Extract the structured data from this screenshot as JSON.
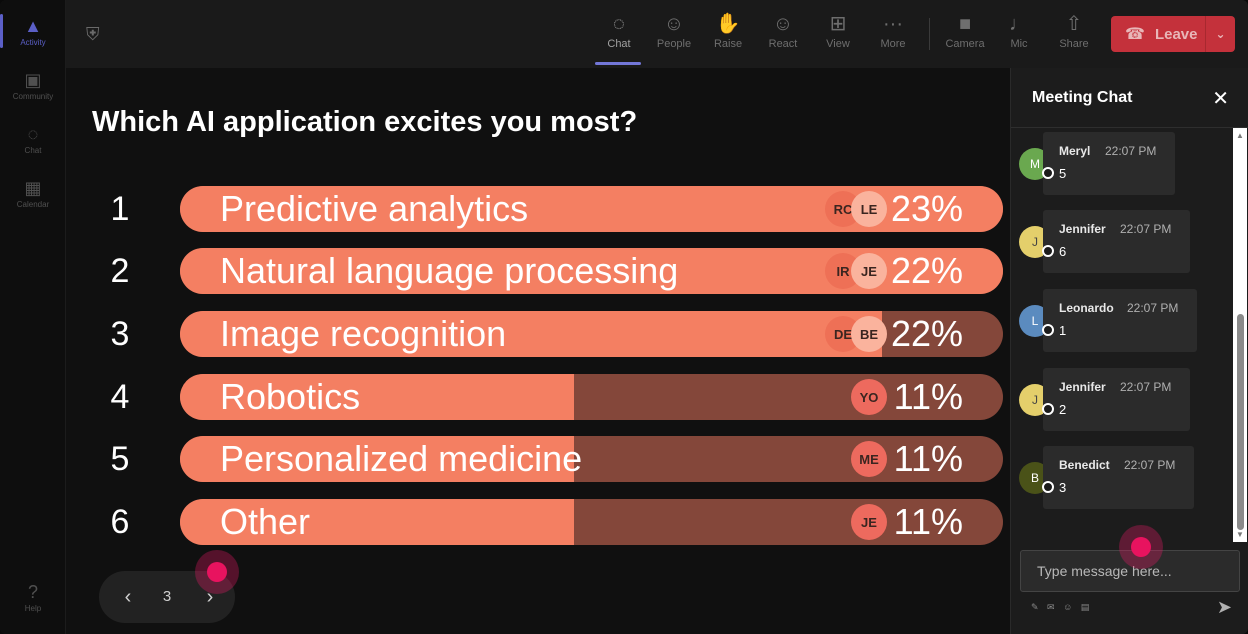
{
  "rail": {
    "items": [
      {
        "label": "Activity",
        "icon": "bell-icon",
        "glyph": "▲"
      },
      {
        "label": "Community",
        "icon": "community-icon",
        "glyph": "▣"
      },
      {
        "label": "Chat",
        "icon": "chat-icon",
        "glyph": "◌"
      },
      {
        "label": "Calendar",
        "icon": "calendar-icon",
        "glyph": "▦"
      },
      {
        "label": "Help",
        "icon": "help-icon",
        "glyph": "?"
      }
    ]
  },
  "toolbar": {
    "buttons": [
      {
        "label": "Chat",
        "icon": "chat-icon",
        "glyph": "◌"
      },
      {
        "label": "People",
        "icon": "people-icon",
        "glyph": "☺"
      },
      {
        "label": "Raise",
        "icon": "hand-icon",
        "glyph": "✋"
      },
      {
        "label": "React",
        "icon": "smiley-icon",
        "glyph": "☺"
      },
      {
        "label": "View",
        "icon": "grid-icon",
        "glyph": "⊞"
      },
      {
        "label": "More",
        "icon": "more-icon",
        "glyph": "···"
      },
      {
        "label": "Camera",
        "icon": "camera-off-icon",
        "glyph": "■"
      },
      {
        "label": "Mic",
        "icon": "mic-icon",
        "glyph": "♩"
      },
      {
        "label": "Share",
        "icon": "share-icon",
        "glyph": "⇧"
      }
    ],
    "leave_label": "Leave",
    "leave_color": "#c4313b"
  },
  "poll": {
    "question": "Which AI application excites you most?",
    "options": [
      {
        "num": "1",
        "label": "Predictive analytics",
        "percent": 23,
        "percent_label": "23%",
        "voters": [
          "LE",
          "RC"
        ]
      },
      {
        "num": "2",
        "label": "Natural language processing",
        "percent": 22,
        "percent_label": "22%",
        "voters": [
          "JE",
          "IR"
        ]
      },
      {
        "num": "3",
        "label": "Image recognition",
        "percent": 22,
        "percent_label": "22%",
        "voters": [
          "BE",
          "DE"
        ]
      },
      {
        "num": "4",
        "label": "Robotics",
        "percent": 11,
        "percent_label": "11%",
        "voters": [
          "YO"
        ]
      },
      {
        "num": "5",
        "label": "Personalized medicine",
        "percent": 11,
        "percent_label": "11%",
        "voters": [
          "ME"
        ]
      },
      {
        "num": "6",
        "label": "Other",
        "percent": 11,
        "percent_label": "11%",
        "voters": [
          "JE"
        ]
      }
    ],
    "bar_color": "#f47f62",
    "track_color": "#84473a",
    "page": "3"
  },
  "chat": {
    "title": "Meeting Chat",
    "messages": [
      {
        "initial": "M",
        "author": "Meryl",
        "time": "22:07 PM",
        "text": "5",
        "avatar_color": "#6aa84f"
      },
      {
        "initial": "J",
        "author": "Jennifer",
        "time": "22:07 PM",
        "text": "6",
        "avatar_color": "#e4cf6b"
      },
      {
        "initial": "L",
        "author": "Leonardo",
        "time": "22:07 PM",
        "text": "1",
        "avatar_color": "#5b8bbf"
      },
      {
        "initial": "J",
        "author": "Jennifer",
        "time": "22:07 PM",
        "text": "2",
        "avatar_color": "#e4cf6b"
      },
      {
        "initial": "B",
        "author": "Benedict",
        "time": "22:07 PM",
        "text": "3",
        "avatar_color": "#4a5218"
      }
    ],
    "placeholder": "Type message here..."
  }
}
